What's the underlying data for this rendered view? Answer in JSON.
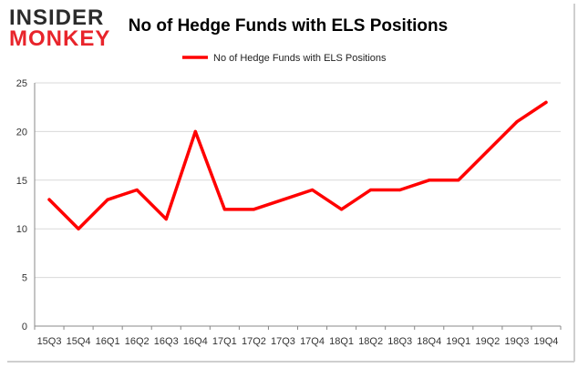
{
  "logo": {
    "line1": "INSIDER",
    "line2": "MONKEY"
  },
  "colors": {
    "line": "#ff0000",
    "axis": "#888888",
    "grid": "#d9d9d9",
    "logo_dark": "#2b2b2b",
    "logo_accent": "#e8242b"
  },
  "chart_data": {
    "type": "line",
    "title": "No of Hedge Funds with ELS Positions",
    "xlabel": "",
    "ylabel": "",
    "categories": [
      "15Q3",
      "15Q4",
      "16Q1",
      "16Q2",
      "16Q3",
      "16Q4",
      "17Q1",
      "17Q2",
      "17Q3",
      "17Q4",
      "18Q1",
      "18Q2",
      "18Q3",
      "18Q4",
      "19Q1",
      "19Q2",
      "19Q3",
      "19Q4"
    ],
    "series": [
      {
        "name": "No of Hedge Funds with ELS Positions",
        "values": [
          13,
          10,
          13,
          14,
          11,
          20,
          12,
          12,
          13,
          14,
          12,
          14,
          14,
          15,
          15,
          18,
          21,
          23
        ]
      }
    ],
    "ylim": [
      0,
      25
    ],
    "yticks": [
      0,
      5,
      10,
      15,
      20,
      25
    ],
    "grid": true,
    "legend": "top-center"
  }
}
